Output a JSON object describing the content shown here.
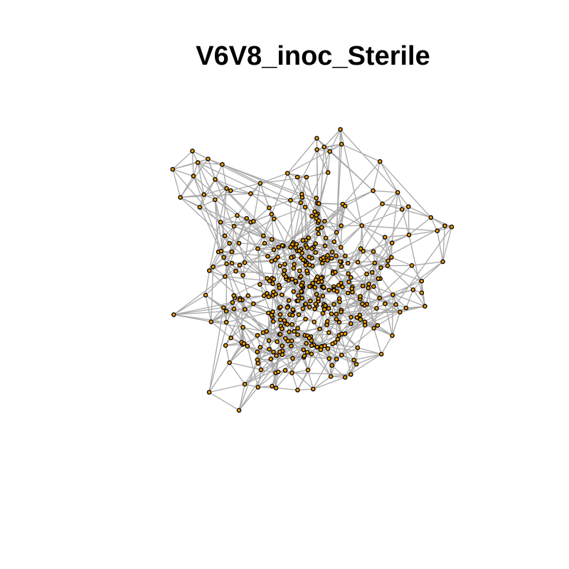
{
  "title": "V6V8_inoc_Sterile",
  "colors": {
    "background": "#ffffff",
    "edge": "#a8a8a8",
    "node_fill": "#f5a000",
    "node_stroke": "#000000",
    "title": "#000000"
  },
  "graph": {
    "type": "network",
    "layout": "force-directed",
    "node_count": 420
  }
}
